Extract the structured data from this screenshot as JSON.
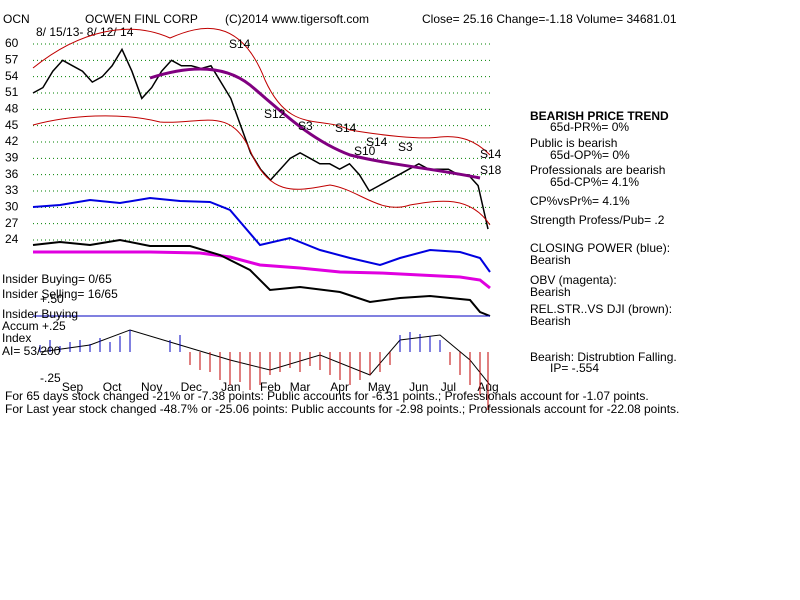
{
  "header": {
    "ticker": "OCN",
    "company": "OCWEN FINL CORP",
    "copyright": "(C)2014 www.tigersoft.com",
    "quote": "Close=  25.16  Change=-1.18 Volume= 34681.01",
    "range": "8/ 15/13- 8/ 12/ 14"
  },
  "signals": [
    "S14",
    "S12",
    "S3",
    "S14",
    "S14",
    "S10",
    "S3",
    "S14",
    "S18"
  ],
  "left_panel": [
    "Insider Buying= 0/65",
    "Insider Selling= 16/65",
    "+.50",
    "Insider Buying",
    "Accum  +.25",
    "Index",
    "AI= 53/200",
    "-.25"
  ],
  "right_panel": [
    "BEARISH PRICE TREND",
    "65d-PR%= 0%",
    "Public is bearish",
    "65d-OP%= 0%",
    "Professionals are bearish",
    "65d-CP%= 4.1%",
    "CP%vsPr%=  4.1%",
    "Strength Profess/Pub= .2",
    "CLOSING POWER (blue):",
    "Bearish",
    "OBV (magenta):",
    "Bearish",
    "REL.STR..VS DJI (brown):",
    "Bearish",
    "Bearish: Distrubtion Falling.",
    "IP= -.554"
  ],
  "footer": [
    "For 65 days stock changed -21% or -7.38 points:  Public accounts for -6.31 points.;  Professionals account for -1.07 points.",
    "For Last year stock changed -48.7% or -25.06 points:  Public accounts for -2.98 points.;  Professionals account for -22.08 points."
  ],
  "chart_data": {
    "type": "line",
    "categories": [
      null,
      null,
      null,
      null,
      "Sep",
      null,
      null,
      null,
      "Oct",
      null,
      null,
      null,
      "Nov",
      null,
      null,
      null,
      "Dec",
      null,
      null,
      null,
      "Jan",
      null,
      null,
      null,
      "Feb",
      null,
      null,
      "Mar",
      null,
      null,
      null,
      "Apr",
      null,
      null,
      null,
      "May",
      null,
      null,
      null,
      "Jun",
      null,
      null,
      "Jul",
      null,
      null,
      null,
      "Aug"
    ],
    "series": [
      {
        "name": "OCN",
        "color": "#000000",
        "values": [
          51,
          52,
          55,
          57,
          56,
          55,
          53,
          54,
          56,
          59,
          55,
          50,
          52,
          55,
          57,
          56,
          56,
          55.5,
          56,
          53,
          50,
          45,
          40,
          37,
          35,
          37,
          39,
          40,
          39,
          38,
          38,
          37,
          38,
          36,
          33,
          34,
          35,
          36,
          37,
          38,
          37,
          37,
          37,
          36,
          36,
          34,
          26
        ]
      }
    ],
    "ylim": [
      21,
      63
    ],
    "yticks": [
      24,
      27,
      30,
      33,
      36,
      39,
      42,
      45,
      48,
      51,
      54,
      57,
      60
    ],
    "grid": true,
    "grid_color": "#008000"
  }
}
